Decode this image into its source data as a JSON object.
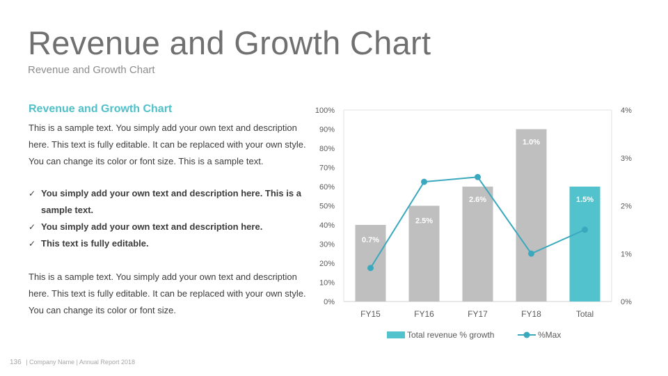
{
  "title": "Revenue and Growth Chart",
  "subtitle": "Revenue and Growth Chart",
  "content": {
    "heading": "Revenue and Growth Chart",
    "para1": "This is a sample text. You simply add your own text and description here. This text is fully editable. It can be replaced with your own style. You can change its color or font size. This is a sample text.",
    "bullets": [
      "You simply add your own text and description here. This is a sample text.",
      "You simply add your own text and description here.",
      "This text is fully editable."
    ],
    "para2": "This is a sample text. You simply add your own text and description here. This text is fully editable. It can be replaced with your own style. You can change its color or font size."
  },
  "footer": {
    "page": "136",
    "text": "| Company Name | Annual Report 2018"
  },
  "icons": {
    "check": "check-icon"
  },
  "colors": {
    "bar": "#bfbfbf",
    "bar_highlight": "#52c2cc",
    "line": "#3aa8bd",
    "accent": "#4fc0c8"
  },
  "chart_data": {
    "type": "bar",
    "categories": [
      "FY15",
      "FY16",
      "FY17",
      "FY18",
      "Total"
    ],
    "series": [
      {
        "name": "Total revenue % growth",
        "values": [
          40,
          50,
          60,
          90,
          60
        ],
        "axis": "left",
        "type": "bar"
      },
      {
        "name": "%Max",
        "values": [
          0.7,
          2.5,
          2.6,
          1.0,
          1.5
        ],
        "axis": "right",
        "type": "line"
      }
    ],
    "data_labels": [
      "0.7%",
      "2.5%",
      "2.6%",
      "1.0%",
      "1.5%"
    ],
    "highlight_index": 4,
    "y_left": {
      "min": 0,
      "max": 100,
      "step": 10,
      "ticks": [
        "0%",
        "10%",
        "20%",
        "30%",
        "40%",
        "50%",
        "60%",
        "70%",
        "80%",
        "90%",
        "100%"
      ]
    },
    "y_right": {
      "min": 0,
      "max": 4,
      "step": 1,
      "ticks": [
        "0%",
        "1%",
        "2%",
        "3%",
        "4%"
      ]
    },
    "legend_position": "bottom",
    "grid": false
  }
}
